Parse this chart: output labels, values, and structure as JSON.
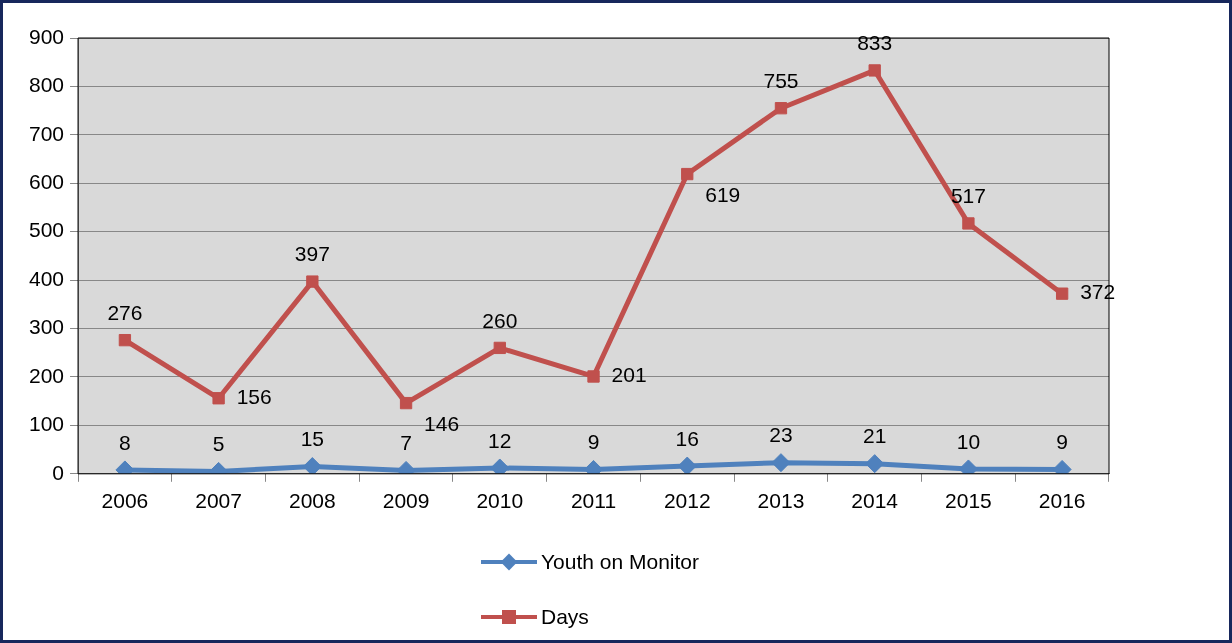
{
  "chart_data": {
    "type": "line",
    "categories": [
      "2006",
      "2007",
      "2008",
      "2009",
      "2010",
      "2011",
      "2012",
      "2013",
      "2014",
      "2015",
      "2016"
    ],
    "series": [
      {
        "name": "Youth on Monitor",
        "color": "#4f81bd",
        "marker": "diamond",
        "values": [
          8,
          5,
          15,
          7,
          12,
          9,
          16,
          23,
          21,
          10,
          9
        ]
      },
      {
        "name": "Days",
        "color": "#c0504d",
        "marker": "square",
        "values": [
          276,
          156,
          397,
          146,
          260,
          201,
          619,
          755,
          833,
          517,
          372
        ]
      }
    ],
    "ylim": [
      0,
      900
    ],
    "yticks": [
      0,
      100,
      200,
      300,
      400,
      500,
      600,
      700,
      800,
      900
    ],
    "grid": "y",
    "legend": "bottom",
    "data_labels": true,
    "line_style": "solid"
  }
}
